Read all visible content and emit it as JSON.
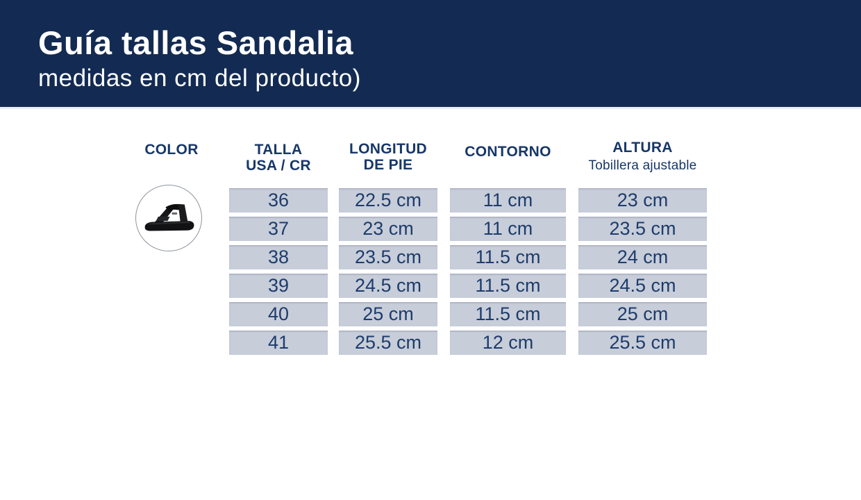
{
  "header": {
    "title": "Guía tallas Sandalia",
    "subtitle": "medidas en cm del producto)"
  },
  "table": {
    "columns": {
      "color": {
        "label": "COLOR"
      },
      "talla": {
        "label": "TALLA",
        "label_line2": "USA / CR"
      },
      "longitud": {
        "label": "LONGITUD",
        "label_line2": "DE PIE"
      },
      "contorno": {
        "label": "CONTORNO"
      },
      "altura": {
        "label": "ALTURA",
        "sublabel": "Tobillera ajustable"
      }
    },
    "rows": [
      {
        "talla": "36",
        "longitud": "22.5 cm",
        "contorno": "11 cm",
        "altura": "23 cm"
      },
      {
        "talla": "37",
        "longitud": "23 cm",
        "contorno": "11 cm",
        "altura": "23.5 cm"
      },
      {
        "talla": "38",
        "longitud": "23.5 cm",
        "contorno": "11.5 cm",
        "altura": "24 cm"
      },
      {
        "talla": "39",
        "longitud": "24.5 cm",
        "contorno": "11.5 cm",
        "altura": "24.5 cm"
      },
      {
        "talla": "40",
        "longitud": "25 cm",
        "contorno": "11.5 cm",
        "altura": "25 cm"
      },
      {
        "talla": "41",
        "longitud": "25.5 cm",
        "contorno": "12 cm",
        "altura": "25.5 cm"
      }
    ]
  },
  "product": {
    "icon": "black-sandal-icon"
  },
  "colors": {
    "band_navy": "#132b52",
    "header_text": "#173768",
    "cell_background": "#c7cdd9",
    "cell_text": "#1d3c6b"
  },
  "chart_data": {
    "type": "table",
    "title": "Guía tallas Sandalia",
    "subtitle": "medidas en cm del producto)",
    "columns": [
      "TALLA USA / CR",
      "LONGITUD DE PIE",
      "CONTORNO",
      "ALTURA (Tobillera ajustable)"
    ],
    "rows": [
      [
        "36",
        "22.5 cm",
        "11 cm",
        "23 cm"
      ],
      [
        "37",
        "23 cm",
        "11 cm",
        "23.5 cm"
      ],
      [
        "38",
        "23.5 cm",
        "11.5 cm",
        "24 cm"
      ],
      [
        "39",
        "24.5 cm",
        "11.5 cm",
        "24.5 cm"
      ],
      [
        "40",
        "25 cm",
        "11.5 cm",
        "25 cm"
      ],
      [
        "41",
        "25.5 cm",
        "12 cm",
        "25.5 cm"
      ]
    ]
  }
}
